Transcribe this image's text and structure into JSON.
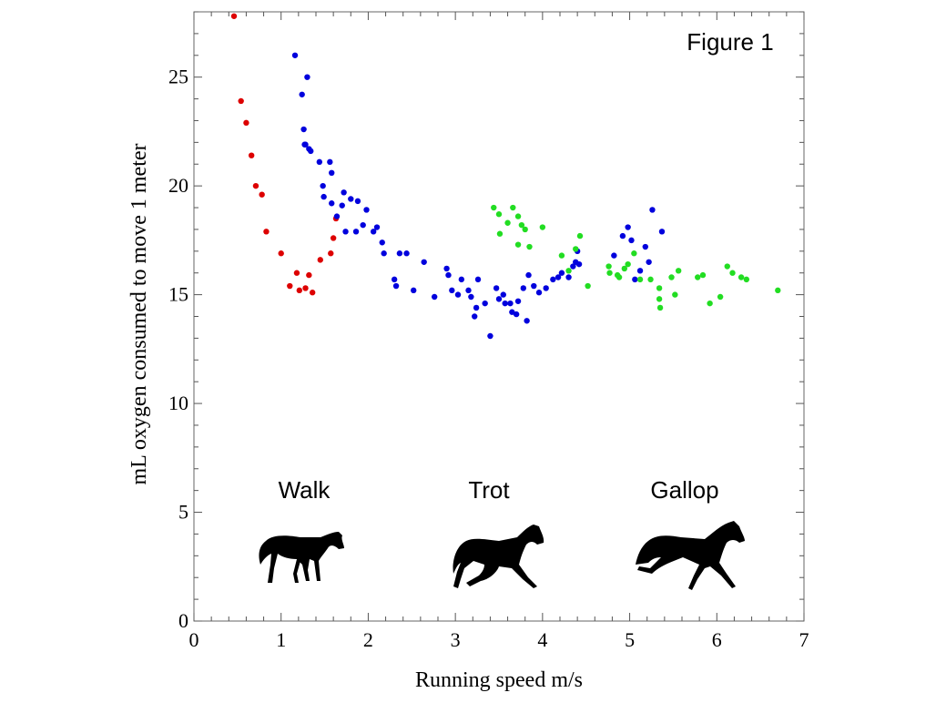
{
  "chart_data": {
    "type": "scatter",
    "title": "",
    "xlabel": "Running speed m/s",
    "ylabel": "mL oxygen consumed to move 1 meter",
    "xlim": [
      0,
      7
    ],
    "ylim": [
      0,
      28
    ],
    "xticks": [
      0,
      1,
      2,
      3,
      4,
      5,
      6,
      7
    ],
    "yticks": [
      0,
      5,
      10,
      15,
      20,
      25
    ],
    "grid": false,
    "legend": "none",
    "annotations": [
      "Figure 1",
      "Walk",
      "Trot",
      "Gallop"
    ],
    "series": [
      {
        "color": "#dd0000",
        "x": [
          0.46,
          0.54,
          0.6,
          0.66,
          0.71,
          0.78,
          0.83,
          1.0,
          1.1,
          1.18,
          1.21,
          1.28,
          1.32,
          1.36,
          1.45,
          1.57,
          1.6,
          1.63
        ],
        "y": [
          27.8,
          23.9,
          22.9,
          21.4,
          20.0,
          19.6,
          17.9,
          16.9,
          15.4,
          16.0,
          15.2,
          15.3,
          15.9,
          15.1,
          16.6,
          16.9,
          17.6,
          18.5
        ]
      },
      {
        "color": "#0000dd",
        "x": [
          1.16,
          1.24,
          1.26,
          1.3,
          1.27,
          1.28,
          1.32,
          1.34,
          1.44,
          1.48,
          1.49,
          1.56,
          1.58,
          1.58,
          1.64,
          1.7,
          1.72,
          1.74,
          1.8,
          1.86,
          1.88,
          1.94,
          1.98,
          2.06,
          2.1,
          2.16,
          2.18,
          2.3,
          2.32,
          2.36,
          2.44,
          2.52,
          2.64,
          2.76,
          2.9,
          2.92,
          2.96,
          3.03,
          3.07,
          3.15,
          3.18,
          3.22,
          3.24,
          3.26,
          3.34,
          3.4,
          3.47,
          3.5,
          3.55,
          3.57,
          3.63,
          3.65,
          3.7,
          3.72,
          3.78,
          3.82,
          3.84,
          3.9,
          3.96,
          4.04,
          4.12,
          4.18,
          4.22,
          4.3,
          4.35,
          4.38,
          4.4,
          4.42,
          4.82,
          4.92,
          4.98,
          5.02,
          5.06,
          5.12,
          5.18,
          5.22,
          5.26,
          5.37
        ],
        "y": [
          26.0,
          24.2,
          22.6,
          25.0,
          21.9,
          21.9,
          21.7,
          21.6,
          21.1,
          20.0,
          19.5,
          21.1,
          20.6,
          19.2,
          18.6,
          19.1,
          19.7,
          17.9,
          19.4,
          17.9,
          19.3,
          18.2,
          18.9,
          17.9,
          18.1,
          17.4,
          16.9,
          15.7,
          15.4,
          16.9,
          16.9,
          15.2,
          16.5,
          14.9,
          16.2,
          15.9,
          15.2,
          15.0,
          15.7,
          15.2,
          14.9,
          14.0,
          14.4,
          15.7,
          14.6,
          13.1,
          15.3,
          14.8,
          15.0,
          14.6,
          14.6,
          14.2,
          14.1,
          14.7,
          15.3,
          13.8,
          15.9,
          15.4,
          15.1,
          15.3,
          15.7,
          15.8,
          16.0,
          15.8,
          16.3,
          16.5,
          17.0,
          16.4,
          16.8,
          17.7,
          18.1,
          17.5,
          15.7,
          16.1,
          17.2,
          16.5,
          18.9,
          17.9
        ]
      },
      {
        "color": "#22dd22",
        "x": [
          3.44,
          3.5,
          3.51,
          3.6,
          3.66,
          3.72,
          3.72,
          3.76,
          3.8,
          3.85,
          4.0,
          4.22,
          4.3,
          4.38,
          4.43,
          4.52,
          4.76,
          4.77,
          4.86,
          4.88,
          4.94,
          4.98,
          5.05,
          5.12,
          5.24,
          5.34,
          5.34,
          5.35,
          5.48,
          5.52,
          5.56,
          5.78,
          5.84,
          5.92,
          6.04,
          6.12,
          6.18,
          6.28,
          6.34,
          6.7
        ],
        "y": [
          19.0,
          18.7,
          17.8,
          18.3,
          19.0,
          18.6,
          17.3,
          18.2,
          18.0,
          17.2,
          18.1,
          16.8,
          16.1,
          17.1,
          17.7,
          15.4,
          16.3,
          16.0,
          15.9,
          15.8,
          16.2,
          16.4,
          16.9,
          15.7,
          15.7,
          15.3,
          14.8,
          14.4,
          15.8,
          15.0,
          16.1,
          15.8,
          15.9,
          14.6,
          14.9,
          16.3,
          16.0,
          15.8,
          15.7,
          15.2
        ]
      }
    ]
  }
}
